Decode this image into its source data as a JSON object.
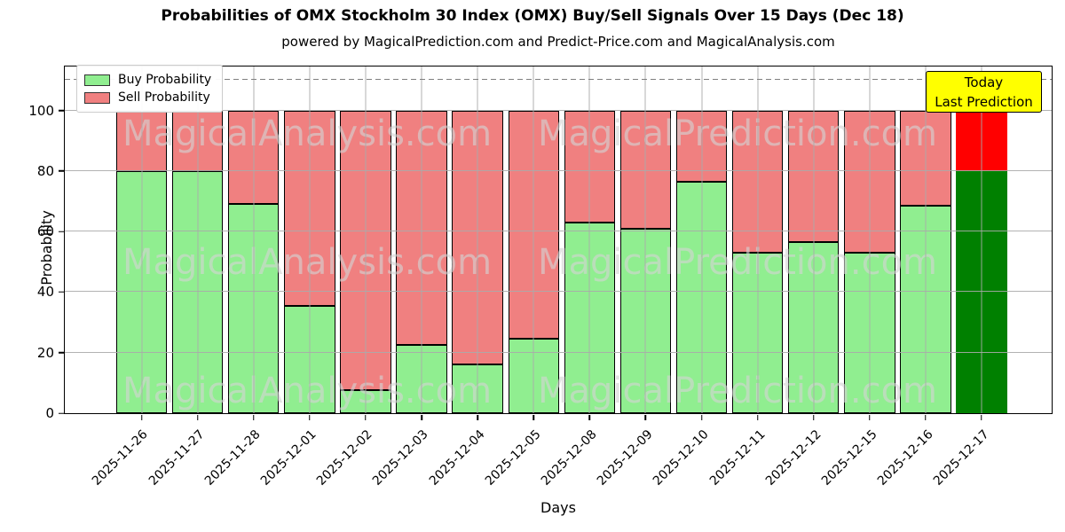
{
  "figure": {
    "title": "Probabilities of OMX Stockholm 30 Index (OMX) Buy/Sell Signals Over 15 Days (Dec 18)",
    "subtitle": "powered by MagicalPrediction.com and Predict-Price.com and MagicalAnalysis.com"
  },
  "axes": {
    "xlabel": "Days",
    "ylabel": "Probability"
  },
  "legend": {
    "items": [
      {
        "label": "Buy Probability",
        "color": "#90ee90"
      },
      {
        "label": "Sell Probability",
        "color": "#f08080"
      }
    ]
  },
  "annotation": {
    "line1": "Today",
    "line2": "Last Prediction",
    "bg_color": "#ffff00"
  },
  "watermark": {
    "left_text": "MagicalAnalysis.com",
    "right_text": "MagicalPrediction.com"
  },
  "chart_data": {
    "type": "bar",
    "stacked": true,
    "title": "Probabilities of OMX Stockholm 30 Index (OMX) Buy/Sell Signals Over 15 Days (Dec 18)",
    "subtitle": "powered by MagicalPrediction.com and Predict-Price.com and MagicalAnalysis.com",
    "xlabel": "Days",
    "ylabel": "Probability",
    "categories": [
      "2025-11-26",
      "2025-11-27",
      "2025-11-28",
      "2025-12-01",
      "2025-12-02",
      "2025-12-03",
      "2025-12-04",
      "2025-12-05",
      "2025-12-08",
      "2025-12-09",
      "2025-12-10",
      "2025-12-11",
      "2025-12-12",
      "2025-12-15",
      "2025-12-16",
      "2025-12-17"
    ],
    "series": [
      {
        "name": "Buy Probability",
        "color": "#90ee90",
        "values": [
          80,
          80,
          69,
          35.5,
          7.5,
          22.5,
          16,
          24.5,
          63,
          61,
          76.5,
          53,
          56.5,
          53,
          68.5,
          80
        ]
      },
      {
        "name": "Sell Probability",
        "color": "#f08080",
        "values": [
          20,
          20,
          31,
          64.5,
          92.5,
          77.5,
          84,
          75.5,
          37,
          39,
          23.5,
          47,
          43.5,
          47,
          31.5,
          20
        ]
      }
    ],
    "today_bar": {
      "index": 15,
      "buy_color": "#008000",
      "sell_color": "#ff0000",
      "label": "Today / Last Prediction"
    },
    "ylim": [
      0,
      114.5
    ],
    "yticks": [
      0,
      20,
      40,
      60,
      80,
      100
    ],
    "dashed_line_y": 110,
    "grid": true,
    "bar_edge_color": "#000000",
    "legend_position": "upper left"
  }
}
